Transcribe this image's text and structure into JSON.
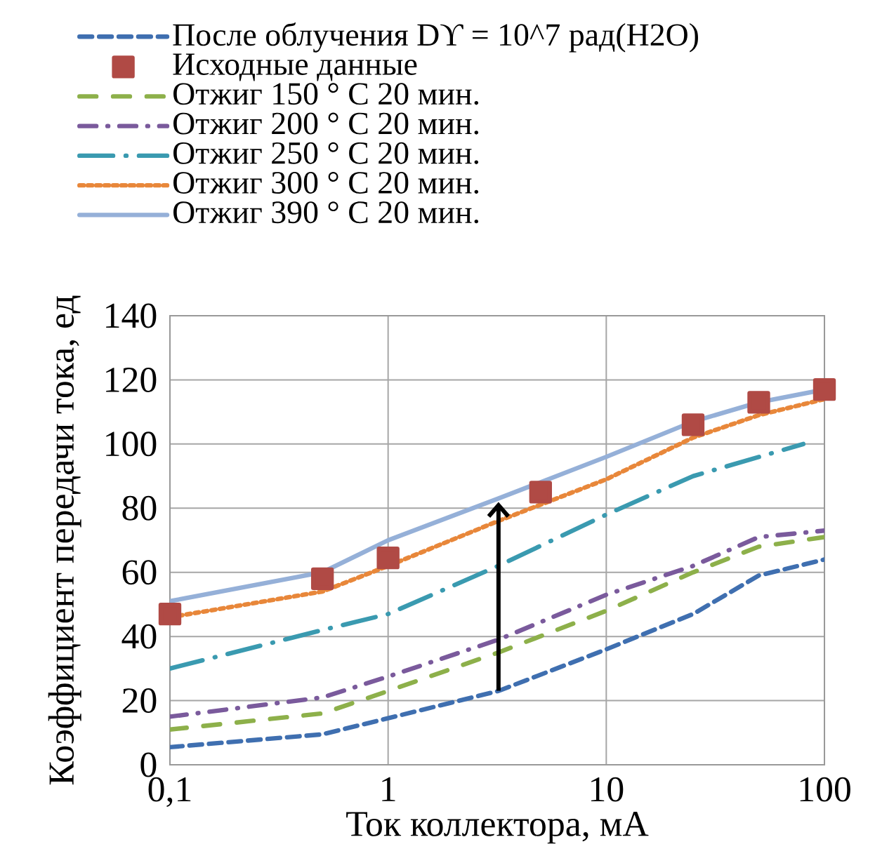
{
  "chart_data": {
    "type": "line",
    "xlabel": "Ток коллектора, мА",
    "ylabel": "Коэффициент передачи тока, ед",
    "log": "x",
    "grid": true,
    "legend": "top",
    "xlim": [
      0.1,
      100
    ],
    "xticks": [
      {
        "value": 0.1,
        "label": "0,1"
      },
      1,
      10,
      100
    ],
    "ylim": [
      0,
      140
    ],
    "yticks": [
      0,
      20,
      40,
      60,
      80,
      100,
      120,
      140
    ],
    "series": [
      {
        "name": "После облучения Dϒ = 10^7 рад(H2O)",
        "color": "#3f6fb0",
        "line_style": "dashed",
        "x": [
          0.1,
          0.5,
          1,
          3.2,
          10,
          25,
          50,
          100
        ],
        "values": [
          5.5,
          9.5,
          14.5,
          23,
          36,
          47,
          59,
          64
        ]
      },
      {
        "name": "Исходные данные",
        "type": "scatter",
        "marker": "square",
        "color": "#b04a45",
        "x": [
          0.1,
          0.5,
          1,
          5,
          25,
          50,
          100
        ],
        "values": [
          47,
          58,
          64.5,
          85,
          106,
          113,
          117
        ]
      },
      {
        "name": "Отжиг 150 ° C  20 мин.",
        "color": "#8db04a",
        "line_style": "dashed",
        "x": [
          0.1,
          0.5,
          1,
          3.2,
          10,
          25,
          50,
          100
        ],
        "values": [
          11,
          16,
          23,
          35,
          48,
          60,
          68,
          71
        ]
      },
      {
        "name": "Отжиг 200 ° C  20 мин.",
        "color": "#7a5a9c",
        "line_style": "dashed",
        "x": [
          0.1,
          0.5,
          1,
          3.2,
          10,
          25,
          50,
          100
        ],
        "values": [
          15,
          21,
          27.5,
          39,
          53,
          62,
          71,
          73
        ]
      },
      {
        "name": "Отжиг 250 ° C  20 мин.",
        "color": "#3a9ab0",
        "line_style": "dashed",
        "x": [
          0.1,
          0.5,
          1,
          3.2,
          10,
          25,
          80
        ],
        "values": [
          30,
          42,
          47,
          62,
          78,
          90,
          100
        ]
      },
      {
        "name": "Отжиг 300 ° C  20 мин.",
        "color": "#e8873a",
        "line_style": "dotted",
        "x": [
          0.1,
          0.5,
          1,
          3.2,
          10,
          25,
          50,
          100
        ],
        "values": [
          46,
          54,
          62,
          76,
          89,
          102,
          109,
          114
        ]
      },
      {
        "name": "Отжиг 390 ° C  20 мин.",
        "color": "#95b0d8",
        "line_style": "solid",
        "x": [
          0.1,
          0.5,
          1,
          3.2,
          10,
          25,
          50,
          100
        ],
        "values": [
          51,
          60,
          70,
          83,
          96,
          107,
          113,
          117
        ]
      }
    ]
  }
}
